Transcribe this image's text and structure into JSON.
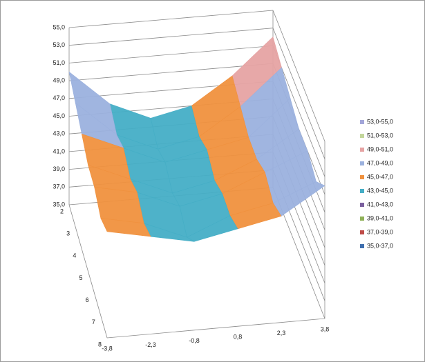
{
  "chart_data": {
    "type": "surface",
    "categories": [
      "-3,8",
      "-2,3",
      "-0,8",
      "0,8",
      "2,3",
      "3,8"
    ],
    "series": [
      {
        "name": "2",
        "values": [
          50,
          46,
          44,
          45,
          48,
          52
        ]
      },
      {
        "name": "3",
        "values": [
          49,
          45,
          43,
          44,
          47,
          51
        ]
      },
      {
        "name": "4",
        "values": [
          48,
          46,
          44,
          45,
          46,
          50
        ]
      },
      {
        "name": "5",
        "values": [
          47,
          45,
          43,
          44,
          46,
          49
        ]
      },
      {
        "name": "6",
        "values": [
          47,
          46,
          44,
          45,
          47,
          49
        ]
      },
      {
        "name": "7",
        "values": [
          46,
          45,
          43,
          45,
          46,
          48
        ]
      },
      {
        "name": "8",
        "values": [
          47,
          46,
          45,
          46,
          47,
          50
        ]
      }
    ],
    "zlim": [
      35,
      55
    ],
    "zticks": [
      {
        "value": 35,
        "label": "35,0"
      },
      {
        "value": 37,
        "label": "37,0"
      },
      {
        "value": 39,
        "label": "39,0"
      },
      {
        "value": 41,
        "label": "41,0"
      },
      {
        "value": 43,
        "label": "43,0"
      },
      {
        "value": 45,
        "label": "45,0"
      },
      {
        "value": 47,
        "label": "47,0"
      },
      {
        "value": 49,
        "label": "49,0"
      },
      {
        "value": 51,
        "label": "51,0"
      },
      {
        "value": 53,
        "label": "53,0"
      },
      {
        "value": 55,
        "label": "55,0"
      }
    ],
    "bands": [
      {
        "label": "53,0-55,0",
        "min": 53,
        "max": 55,
        "color": "#a3a6d9"
      },
      {
        "label": "51,0-53,0",
        "min": 51,
        "max": 53,
        "color": "#c3d69b"
      },
      {
        "label": "49,0-51,0",
        "min": 49,
        "max": 51,
        "color": "#e6a3a3"
      },
      {
        "label": "47,0-49,0",
        "min": 47,
        "max": 49,
        "color": "#9bb1de"
      },
      {
        "label": "45,0-47,0",
        "min": 45,
        "max": 47,
        "color": "#f0913e"
      },
      {
        "label": "43,0-45,0",
        "min": 43,
        "max": 45,
        "color": "#45aec6"
      },
      {
        "label": "41,0-43,0",
        "min": 41,
        "max": 43,
        "color": "#7a5f9e"
      },
      {
        "label": "39,0-41,0",
        "min": 39,
        "max": 41,
        "color": "#8fb158"
      },
      {
        "label": "37,0-39,0",
        "min": 37,
        "max": 39,
        "color": "#bf4b48"
      },
      {
        "label": "35,0-37,0",
        "min": 35,
        "max": 37,
        "color": "#3f6fae"
      }
    ],
    "grid": true
  }
}
